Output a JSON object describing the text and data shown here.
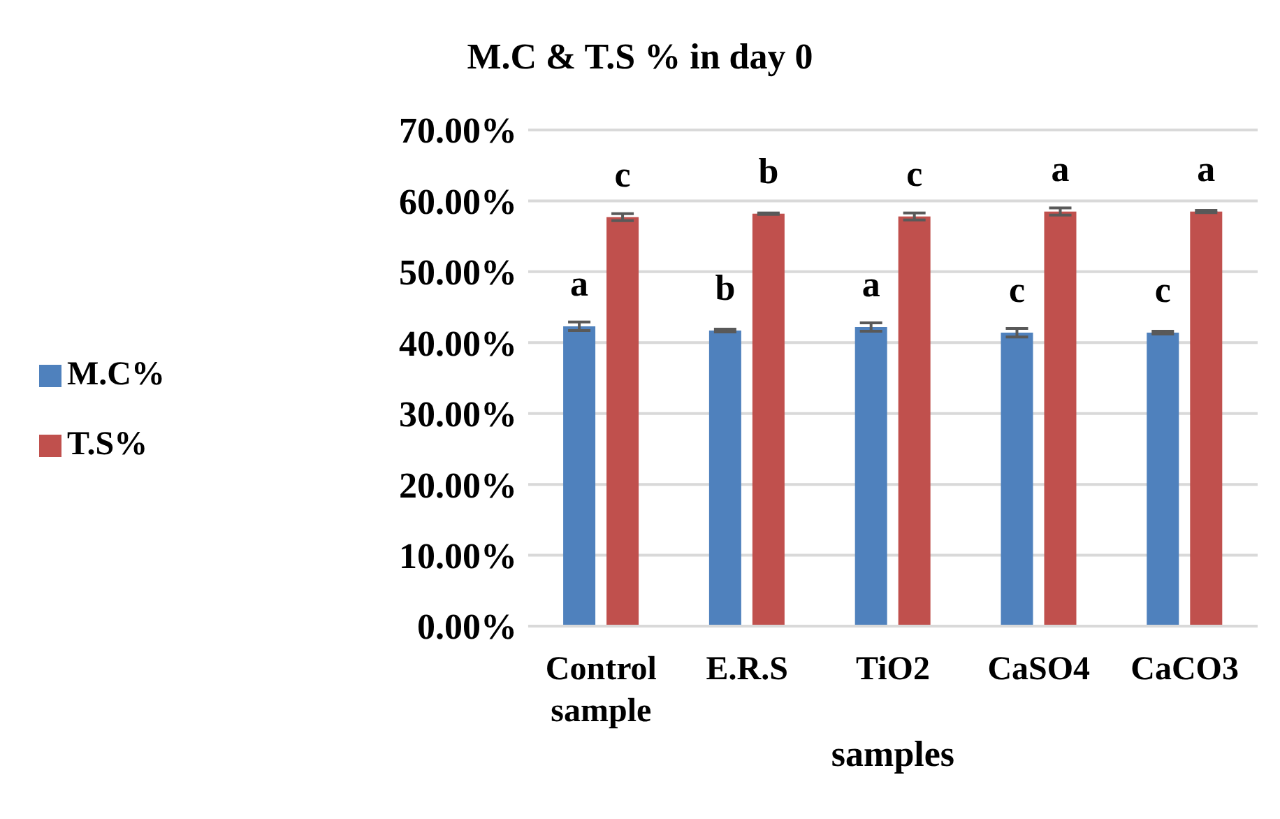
{
  "chart_data": {
    "type": "bar",
    "title": "M.C & T.S % in day 0",
    "xlabel": "samples",
    "categories": [
      "Control sample",
      "E.R.S",
      "TiO2",
      "CaSO4",
      "CaCO3"
    ],
    "series": [
      {
        "name": "M.C%",
        "color": "#4f81bd",
        "values": [
          42.3,
          41.7,
          42.2,
          41.4,
          41.4
        ],
        "errors": [
          0.6,
          0.2,
          0.6,
          0.6,
          0.2
        ],
        "value_labels": [
          "a",
          "b",
          "a",
          "c",
          "c"
        ]
      },
      {
        "name": "T.S%",
        "color": "#c0504d",
        "values": [
          57.7,
          58.2,
          57.8,
          58.5,
          58.5
        ],
        "errors": [
          0.5,
          0.1,
          0.5,
          0.5,
          0.15
        ],
        "value_labels": [
          "c",
          "b",
          "c",
          "a",
          "a"
        ]
      }
    ],
    "ylim": [
      0,
      70
    ],
    "yticks": [
      {
        "value": 0,
        "label": "0.00%"
      },
      {
        "value": 10,
        "label": "10.00%"
      },
      {
        "value": 20,
        "label": "20.00%"
      },
      {
        "value": 30,
        "label": "30.00%"
      },
      {
        "value": 40,
        "label": "40.00%"
      },
      {
        "value": 50,
        "label": "50.00%"
      },
      {
        "value": 60,
        "label": "60.00%"
      },
      {
        "value": 70,
        "label": "70.00%"
      }
    ],
    "grid": "y",
    "legend": "left"
  }
}
